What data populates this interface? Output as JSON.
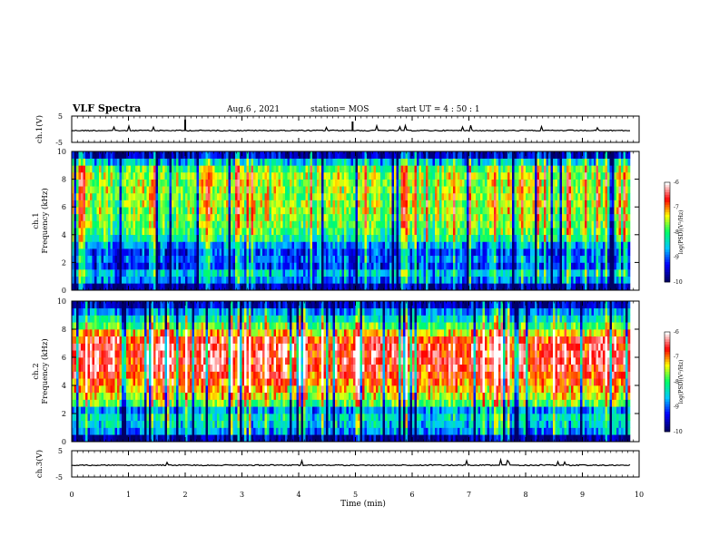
{
  "header": {
    "title": "VLF  Spectra",
    "date": "Aug.6  ,  2021",
    "station": "station= MOS",
    "start": "start  UT  =    4  : 50 : 1"
  },
  "chart_data": [
    {
      "type": "line",
      "name": "ch1-waveform",
      "ylabel": "ch.1(V)",
      "ylim": [
        -5,
        5
      ],
      "yticks": [
        "5",
        "-5"
      ],
      "baseline_level": -0.5,
      "xlim": [
        0,
        10
      ]
    },
    {
      "type": "heatmap",
      "name": "ch1-spectrogram",
      "ylabel": "ch.1\nFrequency (kHz)",
      "ylim": [
        0,
        10
      ],
      "yticks": [
        "0",
        "2",
        "4",
        "6",
        "8",
        "10"
      ],
      "xlim": [
        0,
        9.85
      ],
      "colorbar": {
        "label": "log(PSD)(V²/Hz)",
        "range": [
          -10,
          -6
        ],
        "ticks": [
          "-6",
          "-7",
          "-8",
          "-9",
          "-10"
        ]
      },
      "intensity_profile": [
        {
          "f": 0.25,
          "v": 0.05
        },
        {
          "f": 0.75,
          "v": 0.28
        },
        {
          "f": 1.25,
          "v": 0.35
        },
        {
          "f": 1.75,
          "v": 0.2
        },
        {
          "f": 2.25,
          "v": 0.25
        },
        {
          "f": 2.75,
          "v": 0.2
        },
        {
          "f": 3.25,
          "v": 0.3
        },
        {
          "f": 3.75,
          "v": 0.45
        },
        {
          "f": 4.25,
          "v": 0.52
        },
        {
          "f": 4.75,
          "v": 0.55
        },
        {
          "f": 5.25,
          "v": 0.58
        },
        {
          "f": 5.75,
          "v": 0.6
        },
        {
          "f": 6.25,
          "v": 0.6
        },
        {
          "f": 6.75,
          "v": 0.6
        },
        {
          "f": 7.25,
          "v": 0.6
        },
        {
          "f": 7.75,
          "v": 0.6
        },
        {
          "f": 8.25,
          "v": 0.6
        },
        {
          "f": 8.75,
          "v": 0.55
        },
        {
          "f": 9.25,
          "v": 0.35
        },
        {
          "f": 9.75,
          "v": 0.1
        }
      ]
    },
    {
      "type": "heatmap",
      "name": "ch2-spectrogram",
      "ylabel": "ch.2\nFrequency (kHz)",
      "ylim": [
        0,
        10
      ],
      "yticks": [
        "0",
        "2",
        "4",
        "6",
        "8",
        "10"
      ],
      "xlim": [
        0,
        9.85
      ],
      "colorbar": {
        "label": "log(PSD)(V²/Hz)",
        "range": [
          -10,
          -6
        ],
        "ticks": [
          "-6",
          "-7",
          "-8",
          "-9",
          "-10"
        ]
      },
      "intensity_profile": [
        {
          "f": 0.25,
          "v": 0.05
        },
        {
          "f": 0.75,
          "v": 0.3
        },
        {
          "f": 1.25,
          "v": 0.38
        },
        {
          "f": 1.75,
          "v": 0.4
        },
        {
          "f": 2.25,
          "v": 0.3
        },
        {
          "f": 2.75,
          "v": 0.55
        },
        {
          "f": 3.25,
          "v": 0.65
        },
        {
          "f": 3.75,
          "v": 0.72
        },
        {
          "f": 4.25,
          "v": 0.78
        },
        {
          "f": 4.75,
          "v": 0.84
        },
        {
          "f": 5.25,
          "v": 0.86
        },
        {
          "f": 5.75,
          "v": 0.88
        },
        {
          "f": 6.25,
          "v": 0.88
        },
        {
          "f": 6.75,
          "v": 0.87
        },
        {
          "f": 7.25,
          "v": 0.84
        },
        {
          "f": 7.75,
          "v": 0.7
        },
        {
          "f": 8.25,
          "v": 0.55
        },
        {
          "f": 8.75,
          "v": 0.42
        },
        {
          "f": 9.25,
          "v": 0.3
        },
        {
          "f": 9.75,
          "v": 0.12
        }
      ]
    },
    {
      "type": "line",
      "name": "ch3-waveform",
      "ylabel": "ch.3(V)",
      "ylim": [
        -5,
        5
      ],
      "yticks": [
        "5",
        "-5"
      ],
      "baseline_level": -0.5,
      "xlim": [
        0,
        10
      ]
    }
  ],
  "x_axis": {
    "label": "Time  (min)",
    "range": [
      0,
      10
    ],
    "ticks": [
      "0",
      "1",
      "2",
      "3",
      "4",
      "5",
      "6",
      "7",
      "8",
      "9",
      "10"
    ]
  },
  "colors": {
    "colormap": [
      "#000066",
      "#0000ff",
      "#00c8ff",
      "#00ff66",
      "#ffff00",
      "#ff0000",
      "#ffffff"
    ]
  }
}
